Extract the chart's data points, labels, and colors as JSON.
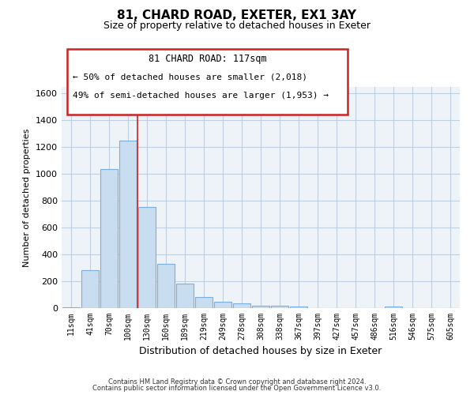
{
  "title": "81, CHARD ROAD, EXETER, EX1 3AY",
  "subtitle": "Size of property relative to detached houses in Exeter",
  "xlabel": "Distribution of detached houses by size in Exeter",
  "ylabel": "Number of detached properties",
  "bar_labels": [
    "11sqm",
    "41sqm",
    "70sqm",
    "100sqm",
    "130sqm",
    "160sqm",
    "189sqm",
    "219sqm",
    "249sqm",
    "278sqm",
    "308sqm",
    "338sqm",
    "367sqm",
    "397sqm",
    "427sqm",
    "457sqm",
    "486sqm",
    "516sqm",
    "546sqm",
    "575sqm",
    "605sqm"
  ],
  "bar_values": [
    5,
    280,
    1035,
    1250,
    755,
    330,
    180,
    85,
    45,
    35,
    20,
    15,
    10,
    0,
    0,
    0,
    0,
    10,
    0,
    0,
    0
  ],
  "bar_color": "#c8ddf0",
  "bar_edge_color": "#7aade0",
  "vline_x": 3.5,
  "ylim": [
    0,
    1650
  ],
  "yticks": [
    0,
    200,
    400,
    600,
    800,
    1000,
    1200,
    1400,
    1600
  ],
  "footer_line1": "Contains HM Land Registry data © Crown copyright and database right 2024.",
  "footer_line2": "Contains public sector information licensed under the Open Government Licence v3.0.",
  "background_color": "#ffffff",
  "plot_bg_color": "#eef3f8",
  "grid_color": "#c0cfe0",
  "annotation_title": "81 CHARD ROAD: 117sqm",
  "annotation_line2": "← 50% of detached houses are smaller (2,018)",
  "annotation_line3": "49% of semi-detached houses are larger (1,953) →"
}
